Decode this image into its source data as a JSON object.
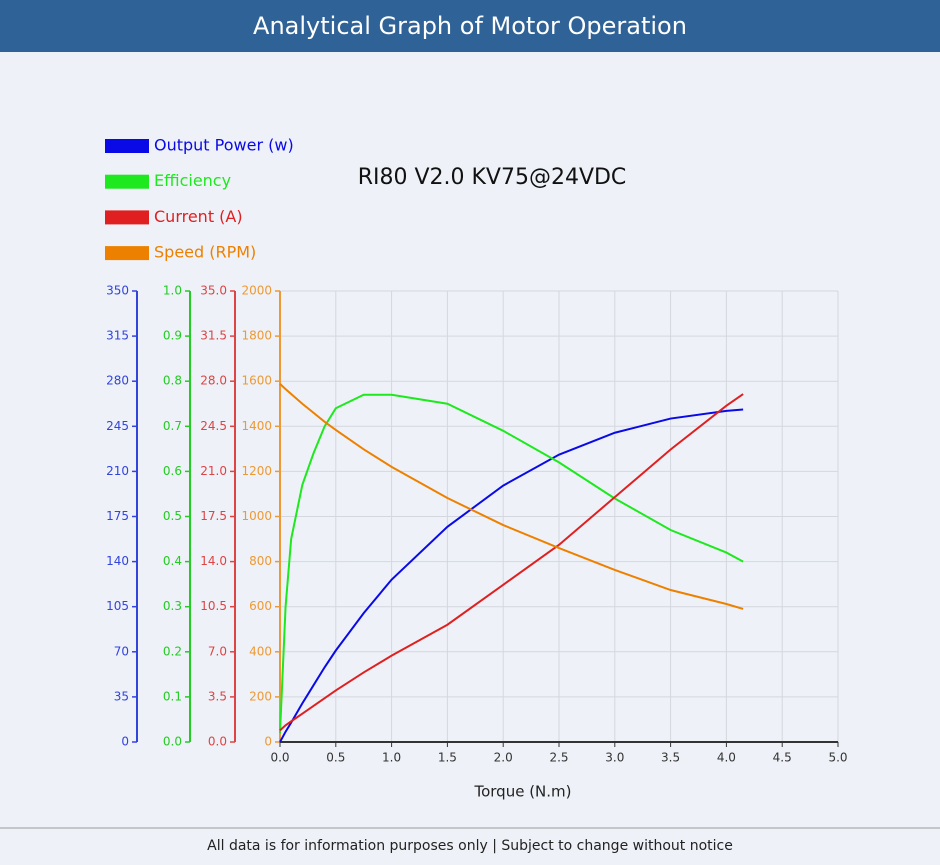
{
  "header": {
    "title": "Analytical Graph of Motor Operation"
  },
  "footer": {
    "text": "All data is for information purposes only | Subject to change without notice"
  },
  "chart_data": {
    "type": "line",
    "subtitle": "RI80 V2.0 KV75@24VDC",
    "x_label": "Torque (N.m)",
    "xlim": [
      0,
      5
    ],
    "xticks": [
      {
        "value": 0,
        "label": "0.0"
      },
      0.5,
      {
        "value": 1,
        "label": "1.0"
      },
      1.5,
      {
        "value": 2,
        "label": "2.0"
      },
      2.5,
      {
        "value": 3,
        "label": "3.0"
      },
      3.5,
      {
        "value": 4,
        "label": "4.0"
      },
      4.5,
      {
        "value": 5,
        "label": "5.0"
      }
    ],
    "grid": true,
    "y_axes": [
      {
        "color": "#3344dd",
        "ylim": [
          0,
          350
        ],
        "yticks": [
          0,
          35,
          70,
          105,
          140,
          175,
          210,
          245,
          280,
          315,
          350
        ]
      },
      {
        "color": "#22cc22",
        "ylim": [
          0,
          1
        ],
        "yticks": [
          {
            "value": 0,
            "label": "0.0"
          },
          0.1,
          0.2,
          0.3,
          0.4,
          0.5,
          0.6,
          0.7,
          0.8,
          0.9,
          {
            "value": 1,
            "label": "1.0"
          }
        ]
      },
      {
        "color": "#dd4444",
        "ylim": [
          0,
          35
        ],
        "yticks": [
          {
            "value": 0,
            "label": "0.0"
          },
          3.5,
          {
            "value": 7,
            "label": "7.0"
          },
          10.5,
          {
            "value": 14,
            "label": "14.0"
          },
          17.5,
          {
            "value": 21,
            "label": "21.0"
          },
          24.5,
          {
            "value": 28,
            "label": "28.0"
          },
          31.5,
          {
            "value": 35,
            "label": "35.0"
          }
        ]
      },
      {
        "color": "#ee9933",
        "ylim": [
          0,
          2000
        ],
        "yticks": [
          0,
          200,
          400,
          600,
          800,
          1000,
          1200,
          1400,
          1600,
          1800,
          2000
        ]
      }
    ],
    "x": [
      0,
      0.05,
      0.1,
      0.2,
      0.3,
      0.4,
      0.5,
      0.75,
      1.0,
      1.5,
      2.0,
      2.5,
      3.0,
      3.5,
      4.0,
      4.15
    ],
    "series": [
      {
        "name": "Output Power (w)",
        "color": "#0a0ae6",
        "axis": 0,
        "values": [
          0,
          8,
          15,
          30,
          44,
          58,
          71,
          100,
          126,
          167,
          199,
          223,
          240,
          251,
          257,
          258
        ]
      },
      {
        "name": "Efficiency",
        "color": "#1ee81e",
        "axis": 1,
        "values": [
          0.02,
          0.3,
          0.45,
          0.57,
          0.64,
          0.7,
          0.74,
          0.77,
          0.77,
          0.75,
          0.69,
          0.62,
          0.54,
          0.47,
          0.42,
          0.4
        ]
      },
      {
        "name": "Current (A)",
        "color": "#e02020",
        "axis": 2,
        "values": [
          0.9,
          1.3,
          1.6,
          2.2,
          2.8,
          3.4,
          4.0,
          5.4,
          6.7,
          9.1,
          12.2,
          15.3,
          19.0,
          22.7,
          26.1,
          27.0
        ]
      },
      {
        "name": "Speed (RPM)",
        "color": "#ee8000",
        "axis": 3,
        "values": [
          1588,
          1565,
          1543,
          1500,
          1460,
          1420,
          1384,
          1298,
          1220,
          1082,
          962,
          860,
          763,
          674,
          612,
          590
        ]
      }
    ]
  }
}
